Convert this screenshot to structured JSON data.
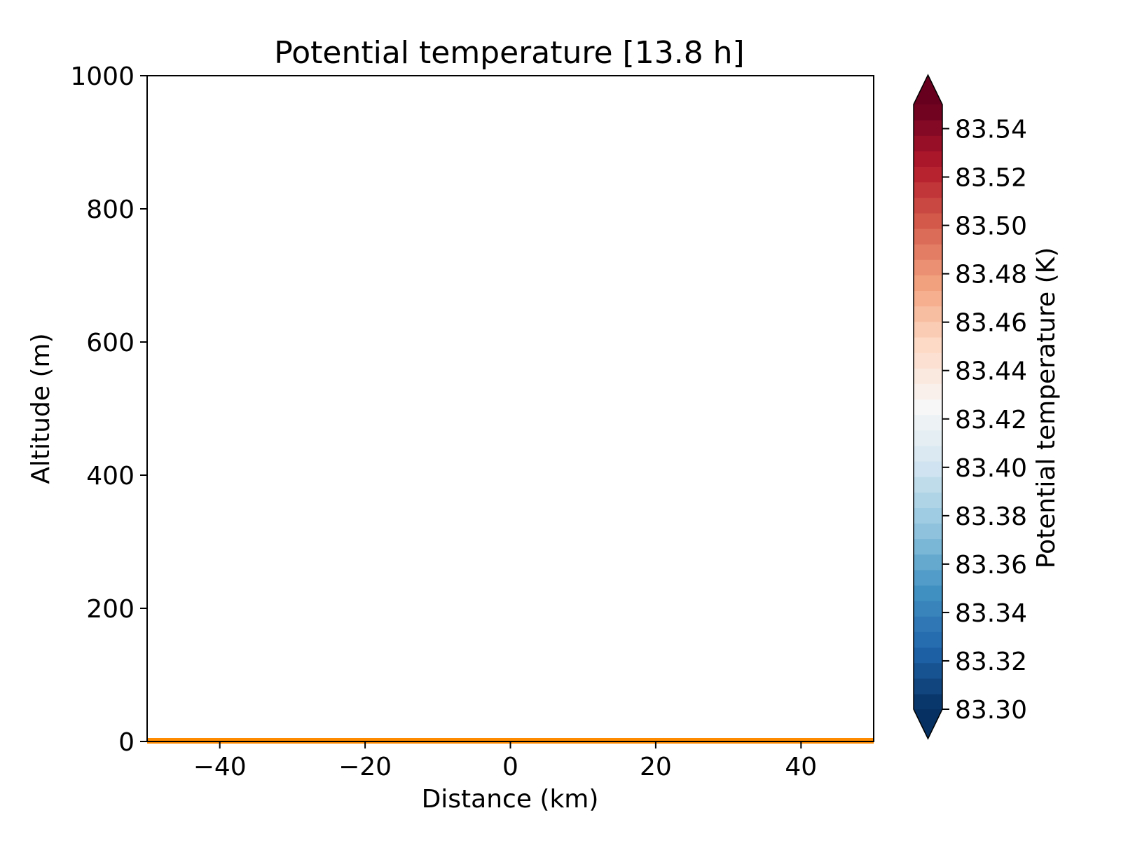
{
  "chart_data": {
    "type": "heatmap",
    "title": "Potential temperature [13.8 h]",
    "xlabel": "Distance (km)",
    "ylabel": "Altitude (m)",
    "xlim": [
      -50,
      50
    ],
    "ylim": [
      0,
      1000
    ],
    "x_ticks": [
      -40,
      -20,
      0,
      20,
      40
    ],
    "x_tick_labels": [
      "−40",
      "−20",
      "0",
      "20",
      "40"
    ],
    "y_ticks": [
      0,
      200,
      400,
      600,
      800,
      1000
    ],
    "y_tick_labels": [
      "0",
      "200",
      "400",
      "600",
      "800",
      "1000"
    ],
    "grid": false,
    "surface_line": {
      "altitude": 0,
      "color": "#ff8c00"
    },
    "colorbar": {
      "label": "Potential temperature (K)",
      "cmap": "RdBu_r",
      "vmin": 83.3,
      "vmax": 83.55,
      "levels": 39,
      "extend": "both",
      "ticks": [
        83.3,
        83.32,
        83.34,
        83.36,
        83.38,
        83.4,
        83.42,
        83.44,
        83.46,
        83.48,
        83.5,
        83.52,
        83.54
      ],
      "tick_labels": [
        "83.30",
        "83.32",
        "83.34",
        "83.36",
        "83.38",
        "83.40",
        "83.42",
        "83.44",
        "83.46",
        "83.48",
        "83.50",
        "83.52",
        "83.54"
      ],
      "under_color": "#053061",
      "over_color": "#67001f"
    }
  }
}
